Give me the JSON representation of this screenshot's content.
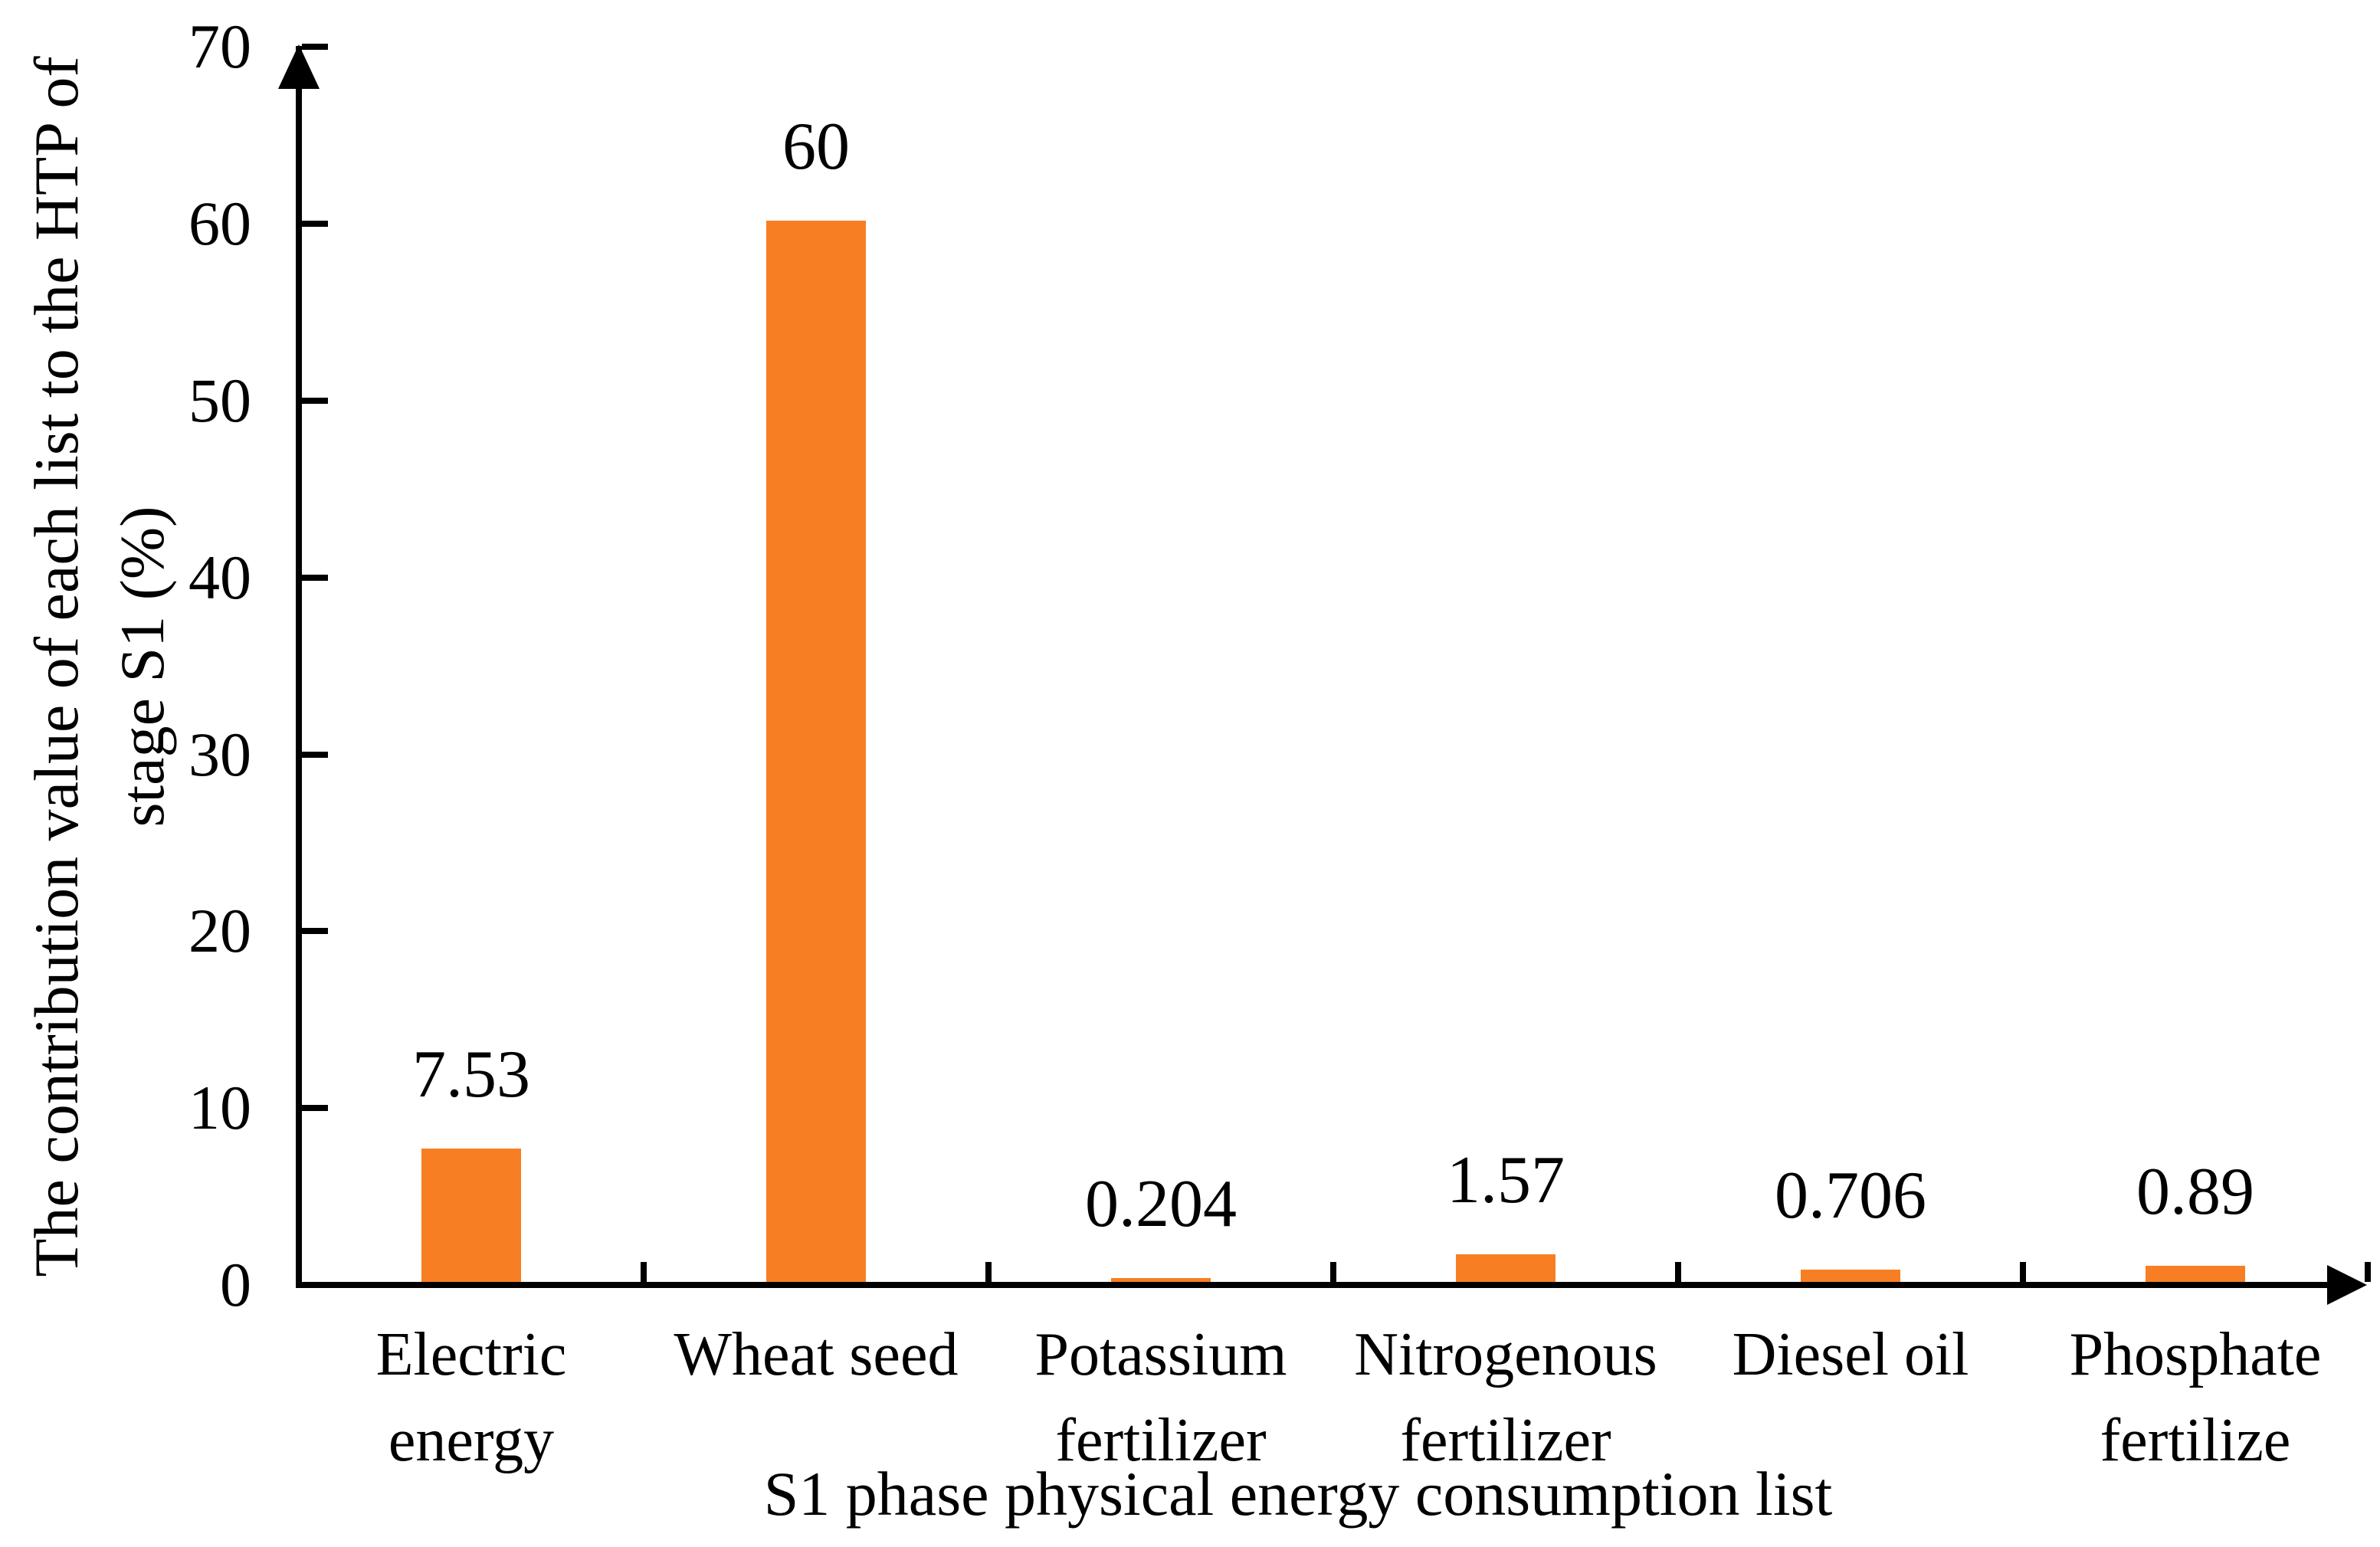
{
  "chart_data": {
    "type": "bar",
    "categories": [
      "Electric energy",
      "Wheat seed",
      "Potassium fertilizer",
      "Nitrogenous fertilizer",
      "Diesel oil",
      "Phosphate fertilize"
    ],
    "values": [
      7.53,
      60,
      0.204,
      1.57,
      0.706,
      0.89
    ],
    "value_labels": [
      "7.53",
      "60",
      "0.204",
      "1.57",
      "0.706",
      "0.89"
    ],
    "xlabel": "S1 phase physical energy consumption list",
    "ylabel_line1": "The contribution value of each list to the HTP of",
    "ylabel_line2": "stage S1 (%)",
    "y_ticks": [
      0,
      10,
      20,
      30,
      40,
      50,
      60,
      70
    ],
    "ylim": [
      0,
      70
    ],
    "bar_color": "#F87E23",
    "axis_color": "#000000",
    "grid": "off",
    "legend": "none"
  }
}
